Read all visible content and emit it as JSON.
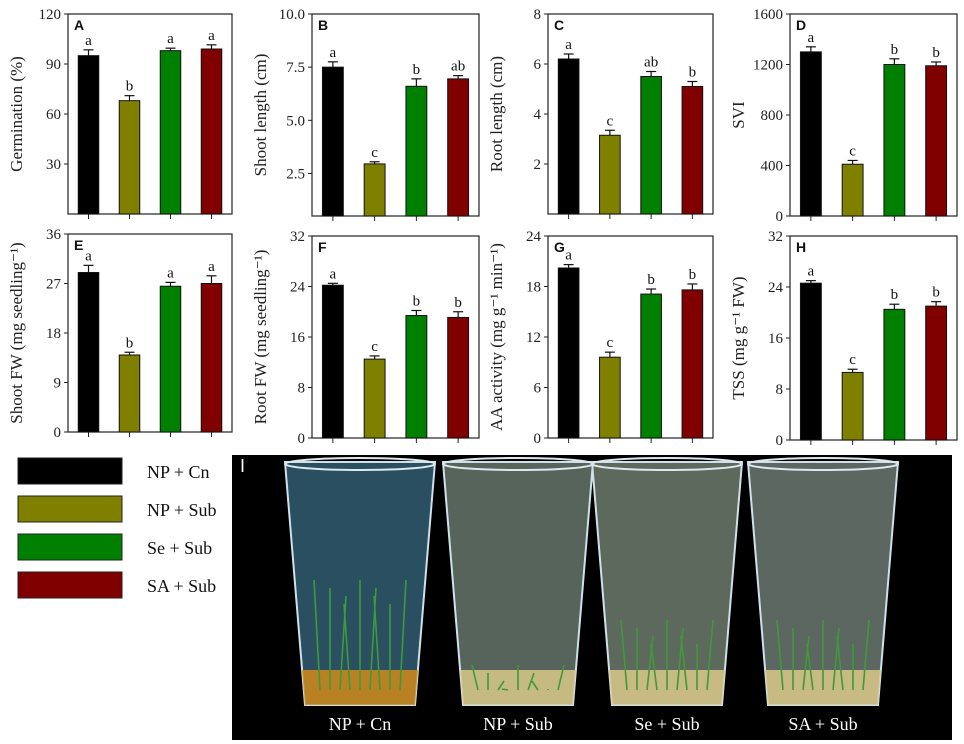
{
  "legend": [
    {
      "label": "NP + Cn",
      "color": "#000000"
    },
    {
      "label": "NP + Sub",
      "color": "#808000"
    },
    {
      "label": "Se + Sub",
      "color": "#008000"
    },
    {
      "label": "SA + Sub",
      "color": "#800000"
    }
  ],
  "photo": {
    "panel": "I",
    "labels": [
      "NP + Cn",
      "NP + Sub",
      "Se + Sub",
      "SA + Sub"
    ]
  },
  "chart_data": [
    {
      "type": "bar",
      "panel": "A",
      "ylabel": "Germination (%)",
      "ylim": [
        0,
        120
      ],
      "ticks": [
        "30",
        "60",
        "90",
        "120"
      ],
      "tick_values": [
        30,
        60,
        90,
        120
      ],
      "categories": [
        "NP + Cn",
        "NP + Sub",
        "Se + Sub",
        "SA + Sub"
      ],
      "values": [
        95,
        68,
        98,
        99
      ],
      "errors": [
        3.5,
        3,
        1.5,
        2.5
      ],
      "letters": [
        "a",
        "b",
        "a",
        "a"
      ]
    },
    {
      "type": "bar",
      "panel": "B",
      "ylabel": "Shoot length (cm)",
      "ylim": [
        0.5,
        10
      ],
      "ticks": [
        "2.5",
        "5.0",
        "7.5",
        "10.0"
      ],
      "tick_values": [
        2.5,
        5,
        7.5,
        10
      ],
      "categories": [
        "NP + Cn",
        "NP + Sub",
        "Se + Sub",
        "SA + Sub"
      ],
      "values": [
        7.5,
        2.95,
        6.6,
        6.95
      ],
      "errors": [
        0.25,
        0.1,
        0.35,
        0.15
      ],
      "letters": [
        "a",
        "c",
        "b",
        "ab"
      ]
    },
    {
      "type": "bar",
      "panel": "C",
      "ylabel": "Root length (cm)",
      "ylim": [
        0,
        8
      ],
      "ticks": [
        "2",
        "4",
        "6",
        "8"
      ],
      "tick_values": [
        2,
        4,
        6,
        8
      ],
      "categories": [
        "NP + Cn",
        "NP + Sub",
        "Se + Sub",
        "SA + Sub"
      ],
      "values": [
        6.2,
        3.15,
        5.5,
        5.1
      ],
      "errors": [
        0.2,
        0.2,
        0.2,
        0.2
      ],
      "letters": [
        "a",
        "c",
        "ab",
        "b"
      ]
    },
    {
      "type": "bar",
      "panel": "D",
      "ylabel": "SVI",
      "ylim": [
        0,
        1600
      ],
      "ticks": [
        "0",
        "400",
        "800",
        "1200",
        "1600"
      ],
      "tick_values": [
        0,
        400,
        800,
        1200,
        1600
      ],
      "categories": [
        "NP + Cn",
        "NP + Sub",
        "Se + Sub",
        "SA + Sub"
      ],
      "values": [
        1300,
        410,
        1200,
        1190
      ],
      "errors": [
        40,
        30,
        45,
        30
      ],
      "letters": [
        "a",
        "c",
        "b",
        "b"
      ]
    },
    {
      "type": "bar",
      "panel": "E",
      "ylabel": "Shoot FW (mg seedling⁻¹)",
      "ylim": [
        0,
        36
      ],
      "ticks": [
        "0",
        "9",
        "18",
        "27",
        "36"
      ],
      "tick_values": [
        0,
        9,
        18,
        27,
        36
      ],
      "categories": [
        "NP + Cn",
        "NP + Sub",
        "Se + Sub",
        "SA + Sub"
      ],
      "values": [
        29,
        14,
        26.5,
        27
      ],
      "errors": [
        1.3,
        0.5,
        0.7,
        1.4
      ],
      "letters": [
        "a",
        "b",
        "a",
        "a"
      ]
    },
    {
      "type": "bar",
      "panel": "F",
      "ylabel": "Root FW (mg seedling⁻¹)",
      "ylim": [
        0,
        32
      ],
      "ticks": [
        "0",
        "8",
        "16",
        "24",
        "32"
      ],
      "tick_values": [
        0,
        8,
        16,
        24,
        32
      ],
      "categories": [
        "NP + Cn",
        "NP + Sub",
        "Se + Sub",
        "SA + Sub"
      ],
      "values": [
        24.2,
        12.5,
        19.4,
        19.1
      ],
      "errors": [
        0.3,
        0.5,
        0.8,
        0.9
      ],
      "letters": [
        "a",
        "c",
        "b",
        "b"
      ]
    },
    {
      "type": "bar",
      "panel": "G",
      "ylabel": "AA activity (mg g⁻¹ min⁻¹)",
      "ylim": [
        0,
        24
      ],
      "ticks": [
        "0",
        "6",
        "12",
        "18",
        "24"
      ],
      "tick_values": [
        0,
        6,
        12,
        18,
        24
      ],
      "categories": [
        "NP + Cn",
        "NP + Sub",
        "Se + Sub",
        "SA + Sub"
      ],
      "values": [
        20.2,
        9.6,
        17.1,
        17.6
      ],
      "errors": [
        0.4,
        0.6,
        0.6,
        0.7
      ],
      "letters": [
        "a",
        "c",
        "b",
        "b"
      ]
    },
    {
      "type": "bar",
      "panel": "H",
      "ylabel": "TSS (mg g⁻¹ FW)",
      "ylim": [
        0,
        32
      ],
      "ticks": [
        "0",
        "8",
        "16",
        "24",
        "32"
      ],
      "tick_values": [
        0,
        8,
        16,
        24,
        32
      ],
      "categories": [
        "NP + Cn",
        "NP + Sub",
        "Se + Sub",
        "SA + Sub"
      ],
      "values": [
        24.6,
        10.6,
        20.5,
        21
      ],
      "errors": [
        0.4,
        0.5,
        0.8,
        0.7
      ],
      "letters": [
        "a",
        "c",
        "b",
        "b"
      ]
    }
  ]
}
